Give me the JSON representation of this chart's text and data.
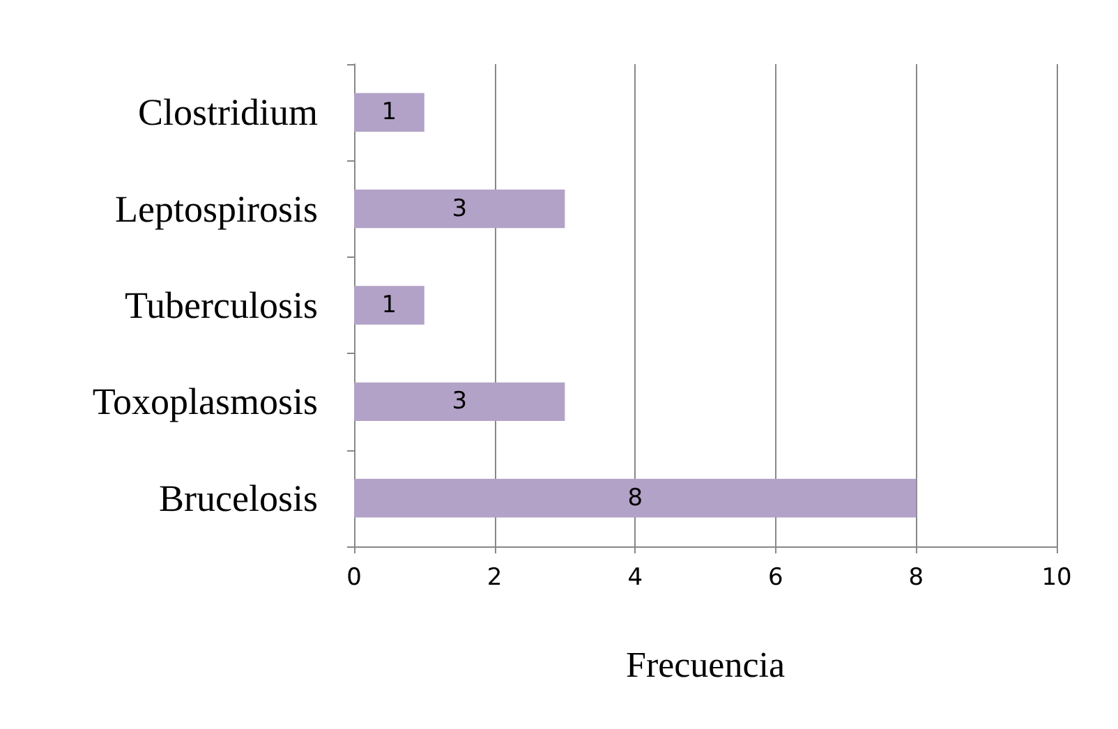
{
  "chart_data": {
    "type": "bar",
    "orientation": "horizontal",
    "categories": [
      "Clostridium",
      "Leptospirosis",
      "Tuberculosis",
      "Toxoplasmosis",
      "Brucelosis"
    ],
    "values": [
      1,
      3,
      1,
      3,
      8
    ],
    "color": "#b3a2c7",
    "xlim": [
      0,
      10
    ],
    "xticks": [
      0,
      2,
      4,
      6,
      8,
      10
    ],
    "xlabel": "Frecuencia",
    "grid": "x",
    "data_labels": true
  }
}
